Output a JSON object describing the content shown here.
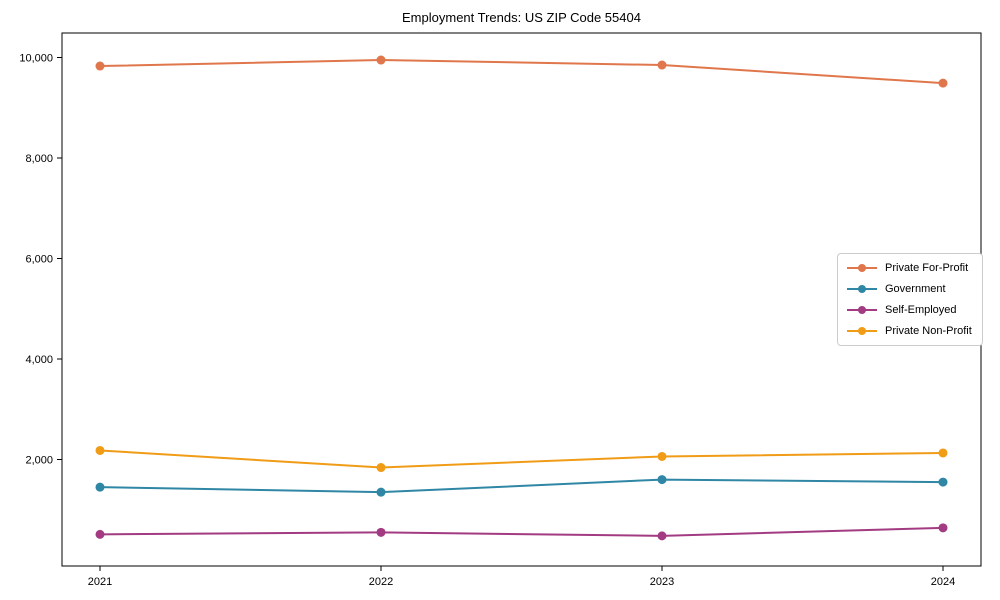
{
  "chart_data": {
    "type": "line",
    "title": "Employment Trends: US ZIP Code 55404",
    "xlabel": "",
    "ylabel": "",
    "x": [
      2021,
      2022,
      2023,
      2024
    ],
    "x_tick_labels": [
      "2021",
      "2022",
      "2023",
      "2024"
    ],
    "yticks": [
      2000,
      4000,
      6000,
      8000,
      10000
    ],
    "ytick_labels": [
      "2,000",
      "4,000",
      "6,000",
      "8,000",
      "10,000"
    ],
    "ylim": [
      0,
      10500
    ],
    "grid": false,
    "legend_position": "center-right",
    "series": [
      {
        "name": "Private For-Profit",
        "color": "#E0764B",
        "values": [
          9830,
          9950,
          9850,
          9490
        ]
      },
      {
        "name": "Government",
        "color": "#2F87A5",
        "values": [
          1450,
          1350,
          1600,
          1550
        ]
      },
      {
        "name": "Self-Employed",
        "color": "#A23B82",
        "values": [
          510,
          550,
          480,
          640
        ]
      },
      {
        "name": "Private Non-Profit",
        "color": "#F09C17",
        "values": [
          2180,
          1840,
          2060,
          2130
        ]
      }
    ]
  }
}
